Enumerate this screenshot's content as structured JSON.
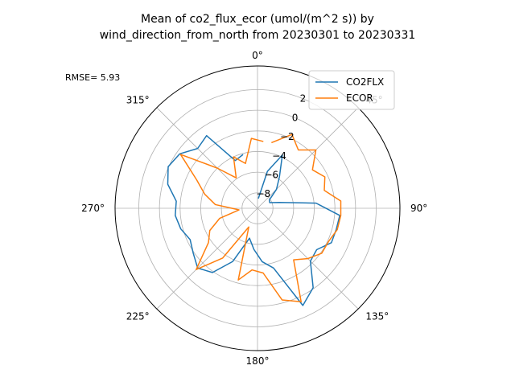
{
  "chart_data": {
    "type": "line",
    "projection": "polar",
    "title_line1": "Mean of co2_flux_ecor (umol/(m^2 s)) by",
    "title_line2": "wind_direction_from_north from 20230301 to 20230331",
    "annotation": "RMSE= 5.93",
    "theta_direction": "clockwise",
    "theta_zero": "north",
    "theta_ticks": [
      "0°",
      "45°",
      "90°",
      "135°",
      "180°",
      "225°",
      "270°",
      "315°"
    ],
    "r_ticks": [
      -8,
      -6,
      -4,
      -2,
      0,
      2
    ],
    "r_tick_labels": [
      "−8",
      "−6",
      "−4",
      "−2",
      "0",
      "2"
    ],
    "rlim": [
      -9.5,
      4.3
    ],
    "grid": true,
    "legend_position": "top-right",
    "series": [
      {
        "name": "CO2FLX",
        "color": "#1f77b4",
        "theta": [
          5,
          15,
          25,
          35,
          45,
          55,
          65,
          75,
          85,
          95,
          105,
          115,
          125,
          135,
          145,
          155,
          165,
          175,
          185,
          195,
          205,
          215,
          225,
          235,
          245,
          255,
          265,
          275,
          285,
          295,
          305,
          315,
          325,
          335,
          345,
          355
        ],
        "r": [
          -8.55,
          -5.8,
          -3.8,
          -5.8,
          -6.9,
          -8.1,
          -8.2,
          -7.3,
          -3.8,
          -1.5,
          -1.6,
          -1.6,
          -2.5,
          -2.25,
          -0.1,
          0.9,
          -3.5,
          -4.3,
          -5.5,
          -6.5,
          -3.8,
          -1.9,
          -1.3,
          -1.9,
          -2.3,
          -1.8,
          -1.5,
          -1.6,
          -0.5,
          0.05,
          -0.3,
          -1.3,
          -0.9,
          -4.4,
          -4.1,
          null
        ]
      },
      {
        "name": "ECOR",
        "color": "#ff7f0e",
        "theta": [
          12,
          25,
          35,
          45,
          55,
          65,
          75,
          85,
          95,
          105,
          115,
          125,
          135,
          145,
          155,
          165,
          175,
          185,
          195,
          205,
          215,
          225,
          235,
          245,
          255,
          265,
          275,
          285,
          295,
          305,
          315,
          325,
          335,
          345,
          355,
          5
        ],
        "r": [
          -3.0,
          -1.6,
          -2.6,
          -1.5,
          -3.0,
          -2.3,
          -2.8,
          -1.4,
          -1.4,
          -1.5,
          -1.9,
          -1.9,
          -2.6,
          -3.4,
          0.5,
          -0.3,
          -3.2,
          -3.5,
          -2.3,
          -7.5,
          -3.6,
          -1.1,
          -3.7,
          -4.4,
          -5.7,
          -7.7,
          -5.4,
          -4.2,
          -3.0,
          -0.4,
          -4.0,
          -5.9,
          -4.0,
          -5.0,
          -2.7,
          -3.0
        ]
      }
    ]
  }
}
